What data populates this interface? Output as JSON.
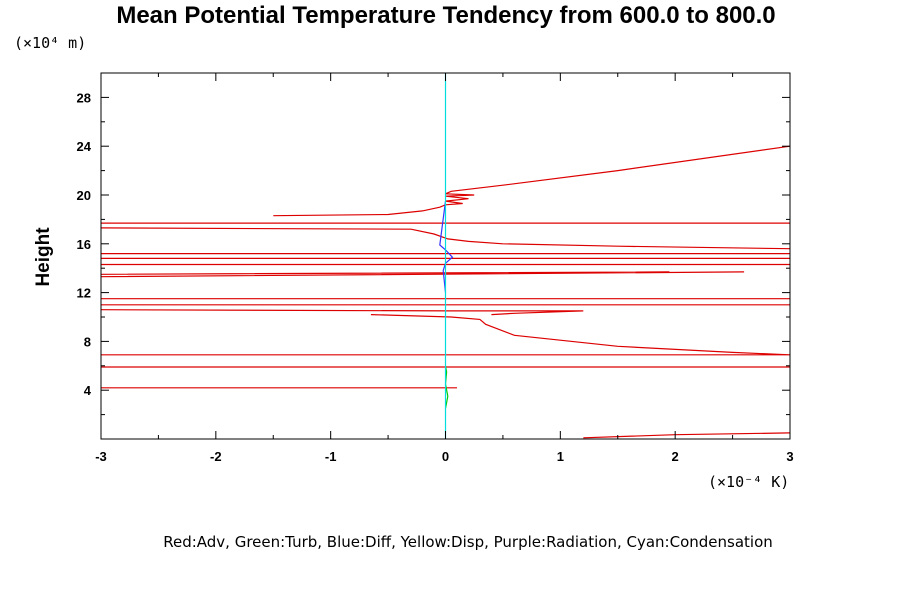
{
  "chart_data": {
    "type": "line",
    "title": "Mean Potential Temperature Tendency from 600.0 to 800.0",
    "ylabel": "Height",
    "xlabel": "",
    "y_unit": "(×10⁴ m)",
    "x_unit": "(×10⁻⁴ K)",
    "xlim": [
      -3,
      3
    ],
    "ylim": [
      0,
      30
    ],
    "x_ticks": [
      -3,
      -2,
      -1,
      0,
      1,
      2,
      3
    ],
    "y_ticks": [
      4,
      8,
      12,
      16,
      20,
      24,
      28
    ],
    "legend": "Red:Adv, Green:Turb, Blue:Diff, Yellow:Disp, Purple:Radiation, Cyan:Condensation",
    "series": [
      {
        "name": "Adv",
        "color": "#dd0000",
        "x": [
          1.2,
          2.0,
          3.0,
          null,
          0.1,
          0.05,
          -3.0,
          null,
          -3.0,
          3.0,
          null,
          -3.0,
          3.0,
          null,
          3.0,
          2.5,
          1.5,
          0.6,
          0.35,
          0.3,
          0.05,
          -0.65,
          null,
          0.4,
          0.6,
          1.2,
          0.05,
          -3.0,
          null,
          3.0,
          -3.0,
          null,
          3.0,
          -3.0,
          null,
          -3.0,
          2.6,
          null,
          -3.0,
          1.95,
          null,
          -3.0,
          3.0,
          null,
          -3.0,
          3.0,
          null,
          -3.0,
          3.0,
          null,
          3.0,
          1.5,
          0.5,
          0.2,
          0.02,
          -0.1,
          -0.3,
          -3.0,
          null,
          -3.0,
          3.0,
          null,
          -1.5,
          -0.5,
          -0.2,
          -0.05,
          0.0,
          0.15,
          0.0,
          0.2,
          0.0,
          0.25,
          0.0,
          0.05,
          0.5,
          1.5,
          3.0
        ],
        "y": [
          0.1,
          0.35,
          0.5,
          null,
          4.2,
          4.2,
          4.2,
          null,
          5.9,
          5.9,
          null,
          6.9,
          6.9,
          null,
          6.9,
          7.1,
          7.6,
          8.5,
          9.4,
          9.8,
          10.0,
          10.2,
          null,
          10.2,
          10.3,
          10.5,
          10.5,
          10.6,
          null,
          11.0,
          11.0,
          null,
          11.5,
          11.5,
          null,
          13.3,
          13.7,
          null,
          13.5,
          13.7,
          null,
          14.3,
          14.3,
          null,
          14.8,
          14.8,
          null,
          15.2,
          15.2,
          null,
          15.6,
          15.8,
          16.0,
          16.2,
          16.4,
          16.8,
          17.2,
          17.3,
          null,
          17.7,
          17.7,
          null,
          18.3,
          18.4,
          18.7,
          19.0,
          19.2,
          19.3,
          19.5,
          19.7,
          19.9,
          20.0,
          20.1,
          20.3,
          20.8,
          22.0,
          24.0
        ]
      },
      {
        "name": "Turb",
        "color": "#00cc00",
        "x": [
          0.0,
          0.02,
          0.0,
          0.01,
          0.0
        ],
        "y": [
          2.5,
          3.5,
          4.5,
          5.5,
          6.0
        ]
      },
      {
        "name": "Diff",
        "color": "#3333ff",
        "x": [
          0.0,
          -0.02,
          0.0,
          0.06,
          0.0,
          -0.05,
          0.0
        ],
        "y": [
          12.0,
          13.8,
          14.4,
          14.9,
          15.5,
          15.9,
          19.5
        ]
      },
      {
        "name": "Condensation",
        "color": "#00dddd",
        "x": [
          0.0,
          0.0
        ],
        "y": [
          0.0,
          30.0
        ]
      }
    ]
  }
}
